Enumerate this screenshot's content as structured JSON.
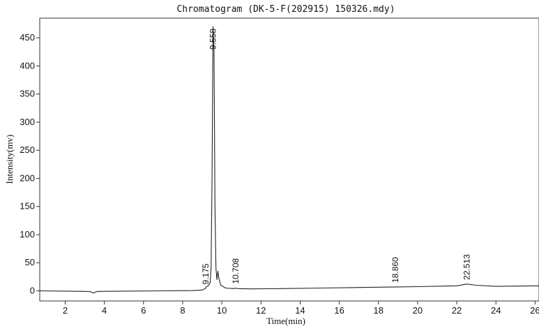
{
  "chart_data": {
    "type": "line",
    "title": "Chromatogram (DK-5-F(202915) 150326.mdy)",
    "xlabel": "Time(min)",
    "ylabel": "Intensity(mv)",
    "xlim": [
      0.7,
      26.2
    ],
    "ylim": [
      -18,
      485
    ],
    "x_ticks": [
      2,
      4,
      6,
      8,
      10,
      12,
      14,
      16,
      18,
      20,
      22,
      24,
      26
    ],
    "y_ticks": [
      0,
      50,
      100,
      150,
      200,
      250,
      300,
      350,
      400,
      450
    ],
    "grid": false,
    "legend": "none",
    "line_color": "#222222",
    "series": [
      {
        "points": [
          [
            0.7,
            0
          ],
          [
            2.0,
            -0.5
          ],
          [
            3.0,
            -1
          ],
          [
            3.3,
            -1.5
          ],
          [
            3.45,
            -4
          ],
          [
            3.55,
            -2
          ],
          [
            3.7,
            -1
          ],
          [
            5.0,
            -0.5
          ],
          [
            7.0,
            0
          ],
          [
            8.5,
            0.5
          ],
          [
            9.0,
            1.5
          ],
          [
            9.15,
            4
          ],
          [
            9.2,
            7
          ],
          [
            9.3,
            9
          ],
          [
            9.4,
            14
          ],
          [
            9.45,
            40
          ],
          [
            9.5,
            200
          ],
          [
            9.55,
            470
          ],
          [
            9.6,
            430
          ],
          [
            9.65,
            150
          ],
          [
            9.7,
            40
          ],
          [
            9.75,
            20
          ],
          [
            9.8,
            35
          ],
          [
            9.85,
            22
          ],
          [
            9.95,
            10
          ],
          [
            10.2,
            5
          ],
          [
            10.6,
            4
          ],
          [
            10.7,
            5
          ],
          [
            10.8,
            4
          ],
          [
            11.5,
            3.5
          ],
          [
            13.0,
            4
          ],
          [
            15.0,
            5
          ],
          [
            17.0,
            6
          ],
          [
            18.86,
            7
          ],
          [
            20.0,
            7.5
          ],
          [
            22.0,
            9
          ],
          [
            22.5,
            12
          ],
          [
            23.0,
            10
          ],
          [
            24.0,
            8
          ],
          [
            26.2,
            9
          ]
        ]
      }
    ],
    "annotations": [
      {
        "text": "9.175",
        "x": 9.175,
        "y": 4
      },
      {
        "text": "9.558",
        "x": 9.558,
        "y": 472
      },
      {
        "text": "10.708",
        "x": 10.708,
        "y": 5
      },
      {
        "text": "18.860",
        "x": 18.86,
        "y": 7
      },
      {
        "text": "22.513",
        "x": 22.513,
        "y": 12
      }
    ]
  }
}
